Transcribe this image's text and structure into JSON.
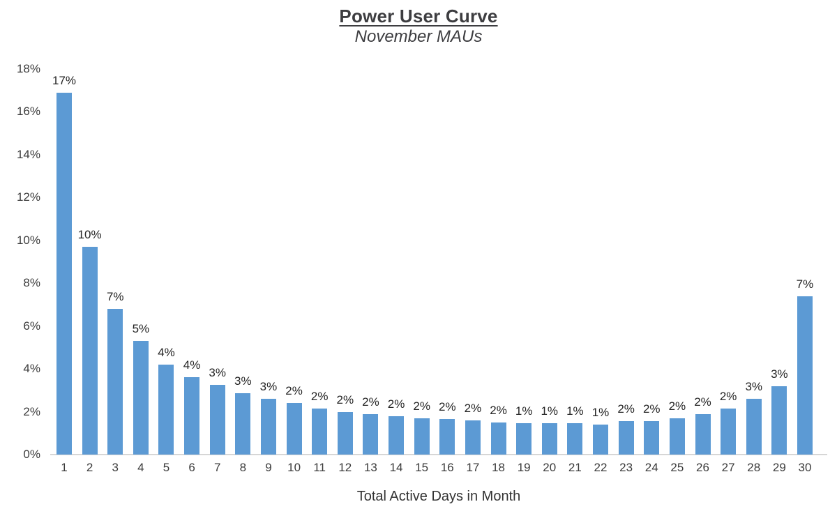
{
  "header": {
    "title": "Power User Curve",
    "subtitle": "November MAUs"
  },
  "chart_data": {
    "type": "bar",
    "title": "Power User Curve",
    "subtitle": "November MAUs",
    "xlabel": "Total Active Days in Month",
    "ylabel": "",
    "categories": [
      "1",
      "2",
      "3",
      "4",
      "5",
      "6",
      "7",
      "8",
      "9",
      "10",
      "11",
      "12",
      "13",
      "14",
      "15",
      "16",
      "17",
      "18",
      "19",
      "20",
      "21",
      "22",
      "23",
      "24",
      "25",
      "26",
      "27",
      "28",
      "29",
      "30"
    ],
    "values": [
      16.9,
      9.7,
      6.8,
      5.3,
      4.2,
      3.6,
      3.25,
      2.85,
      2.6,
      2.4,
      2.15,
      2.0,
      1.9,
      1.8,
      1.7,
      1.65,
      1.6,
      1.5,
      1.45,
      1.45,
      1.45,
      1.4,
      1.55,
      1.55,
      1.7,
      1.9,
      2.15,
      2.6,
      3.2,
      7.4
    ],
    "bar_labels": [
      "17%",
      "10%",
      "7%",
      "5%",
      "4%",
      "4%",
      "3%",
      "3%",
      "3%",
      "2%",
      "2%",
      "2%",
      "2%",
      "2%",
      "2%",
      "2%",
      "2%",
      "2%",
      "1%",
      "1%",
      "1%",
      "1%",
      "2%",
      "2%",
      "2%",
      "2%",
      "2%",
      "3%",
      "3%",
      "7%"
    ],
    "yticks": [
      "0%",
      "2%",
      "4%",
      "6%",
      "8%",
      "10%",
      "12%",
      "14%",
      "16%",
      "18%"
    ],
    "ylim": [
      0,
      18
    ],
    "grid": false,
    "legend": "none",
    "bar_color": "#5C9AD4",
    "axis_line_color": "#d6d6d6",
    "label_color": "#242424",
    "tick_color": "#3b3b3b",
    "title_color": "#3d3d40"
  }
}
